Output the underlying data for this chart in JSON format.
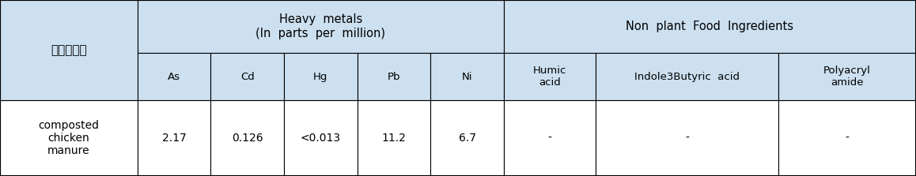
{
  "bg_color": "#cce0f0",
  "border_color": "#000000",
  "fig_width": 11.58,
  "fig_height": 2.23,
  "col1_header": "퇴비상품명",
  "heavy_metals_header": "Heavy  metals\n(In  parts  per  million)",
  "non_plant_header": "Non  plant  Food  Ingredients",
  "sub_headers": [
    "As",
    "Cd",
    "Hg",
    "Pb",
    "Ni",
    "Humic\nacid",
    "Indole3Butyric  acid",
    "Polyacryl\namide"
  ],
  "row_label": "composted\nchicken\nmanure",
  "row_values": [
    "2.17",
    "0.126",
    "<0.013",
    "11.2",
    "6.7",
    "-",
    "-",
    "-"
  ],
  "col_widths": [
    1.5,
    0.8,
    0.8,
    0.8,
    0.8,
    0.8,
    1.0,
    2.0,
    1.5
  ],
  "header_fontsize": 10.5,
  "sub_header_fontsize": 9.5,
  "data_fontsize": 10,
  "korean_fontsize": 11
}
